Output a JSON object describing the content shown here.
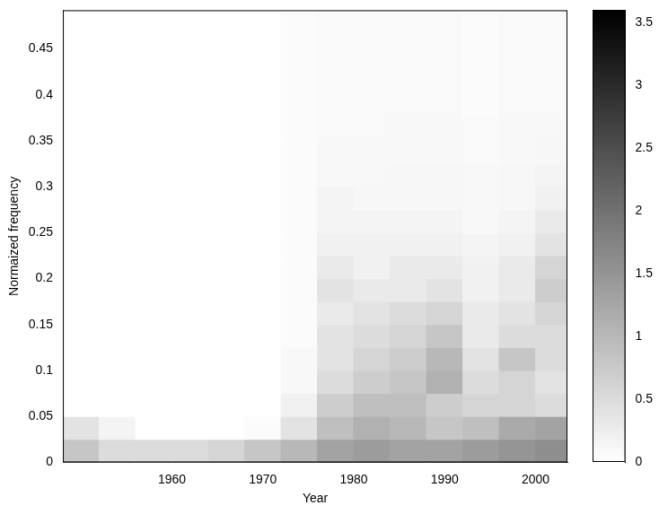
{
  "chart_data": {
    "type": "heatmap",
    "x_label": "Year",
    "y_label": "Normaized frequency",
    "x": [
      1950,
      1954,
      1958,
      1962,
      1966,
      1970,
      1974,
      1978,
      1982,
      1986,
      1990,
      1994,
      1998,
      2002
    ],
    "y": [
      0.0125,
      0.0375,
      0.0625,
      0.0875,
      0.1125,
      0.1375,
      0.1625,
      0.1875,
      0.2125,
      0.2375,
      0.2625,
      0.2875,
      0.3125,
      0.3375,
      0.3625,
      0.3875,
      0.4125,
      0.4375,
      0.4625,
      0.4875
    ],
    "values": [
      [
        0.8,
        0.5,
        0.5,
        0.5,
        0.6,
        0.8,
        1.0,
        1.3,
        1.4,
        1.3,
        1.3,
        1.4,
        1.5,
        1.6
      ],
      [
        0.4,
        0.15,
        0,
        0,
        0,
        0.05,
        0.4,
        0.9,
        1.1,
        1.0,
        0.8,
        0.9,
        1.2,
        1.3
      ],
      [
        0,
        0,
        0,
        0,
        0,
        0,
        0.2,
        0.7,
        0.9,
        0.9,
        0.7,
        0.6,
        0.6,
        0.5
      ],
      [
        0,
        0,
        0,
        0,
        0,
        0,
        0.1,
        0.5,
        0.7,
        0.8,
        1.1,
        0.5,
        0.6,
        0.4
      ],
      [
        0,
        0,
        0,
        0,
        0,
        0,
        0.1,
        0.4,
        0.6,
        0.7,
        1.0,
        0.4,
        0.8,
        0.5
      ],
      [
        0,
        0,
        0,
        0,
        0,
        0,
        0.05,
        0.4,
        0.5,
        0.6,
        0.8,
        0.3,
        0.5,
        0.5
      ],
      [
        0,
        0,
        0,
        0,
        0,
        0,
        0.05,
        0.3,
        0.4,
        0.5,
        0.6,
        0.3,
        0.4,
        0.6
      ],
      [
        0,
        0,
        0,
        0,
        0,
        0,
        0.05,
        0.4,
        0.3,
        0.3,
        0.4,
        0.2,
        0.3,
        0.7
      ],
      [
        0,
        0,
        0,
        0,
        0,
        0,
        0.05,
        0.3,
        0.2,
        0.3,
        0.3,
        0.2,
        0.3,
        0.6
      ],
      [
        0,
        0,
        0,
        0,
        0,
        0,
        0.05,
        0.2,
        0.2,
        0.2,
        0.2,
        0.15,
        0.2,
        0.4
      ],
      [
        0,
        0,
        0,
        0,
        0,
        0,
        0.05,
        0.15,
        0.15,
        0.15,
        0.15,
        0.1,
        0.15,
        0.3
      ],
      [
        0,
        0,
        0,
        0,
        0,
        0,
        0.05,
        0.15,
        0.12,
        0.12,
        0.12,
        0.1,
        0.12,
        0.2
      ],
      [
        0,
        0,
        0,
        0,
        0,
        0,
        0.05,
        0.1,
        0.1,
        0.12,
        0.12,
        0.1,
        0.12,
        0.15
      ],
      [
        0,
        0,
        0,
        0,
        0,
        0,
        0.05,
        0.1,
        0.1,
        0.1,
        0.1,
        0.08,
        0.1,
        0.12
      ],
      [
        0,
        0,
        0,
        0,
        0,
        0,
        0.05,
        0.08,
        0.08,
        0.1,
        0.1,
        0.08,
        0.1,
        0.1
      ],
      [
        0,
        0,
        0,
        0,
        0,
        0,
        0.05,
        0.08,
        0.08,
        0.08,
        0.08,
        0.06,
        0.08,
        0.08
      ],
      [
        0,
        0,
        0,
        0,
        0,
        0,
        0.05,
        0.08,
        0.08,
        0.08,
        0.08,
        0.06,
        0.08,
        0.08
      ],
      [
        0,
        0,
        0,
        0,
        0,
        0,
        0.05,
        0.08,
        0.08,
        0.08,
        0.08,
        0.06,
        0.08,
        0.08
      ],
      [
        0,
        0,
        0,
        0,
        0,
        0,
        0.05,
        0.08,
        0.08,
        0.08,
        0.08,
        0.06,
        0.08,
        0.08
      ],
      [
        0,
        0,
        0,
        0,
        0,
        0,
        0.05,
        0.08,
        0.08,
        0.08,
        0.08,
        0.06,
        0.08,
        0.08
      ]
    ],
    "xlim": [
      1948,
      2003.5
    ],
    "xticks": [
      1960,
      1970,
      1980,
      1990,
      2000
    ],
    "ylim": [
      0,
      0.492
    ],
    "yticks": [
      0,
      0.05,
      0.1,
      0.15,
      0.2,
      0.25,
      0.3,
      0.35,
      0.4,
      0.45
    ],
    "colorbar": {
      "range": [
        0,
        3.6
      ],
      "ticks": [
        0,
        0.5,
        1,
        1.5,
        2,
        2.5,
        3,
        3.5
      ]
    },
    "grid": false
  }
}
